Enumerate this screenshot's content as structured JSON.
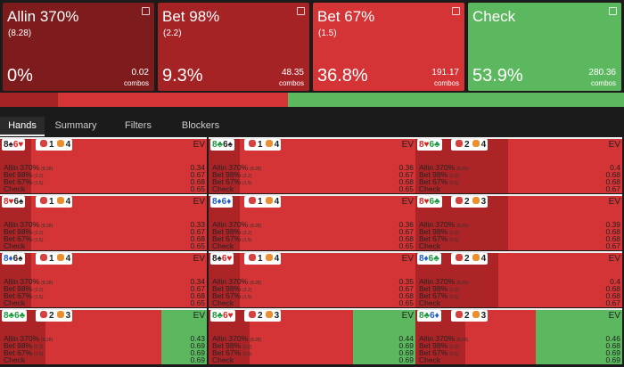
{
  "actions": [
    {
      "name": "Allin 370%",
      "size": "(8.28)",
      "freq": {
        "value": 0,
        "label": "0%"
      },
      "combos": 0.02,
      "color": "#7e1c1d"
    },
    {
      "name": "Bet 98%",
      "size": "(2.2)",
      "freq": {
        "value": 9.3,
        "label": "9.3%"
      },
      "combos": 48.35,
      "color": "#a52225"
    },
    {
      "name": "Bet 67%",
      "size": "(1.5)",
      "freq": {
        "value": 36.8,
        "label": "36.8%"
      },
      "combos": 191.17,
      "color": "#d43435"
    },
    {
      "name": "Check",
      "freq": {
        "value": 53.9,
        "label": "53.9%"
      },
      "combos": 280.36,
      "color": "#5cb85e"
    }
  ],
  "combos_unit": "combos",
  "tabs": [
    "Hands",
    "Summary",
    "Filters",
    "Blockers"
  ],
  "ev_label": "EV",
  "cells": [
    {
      "cards": [
        {
          "text": "8♠",
          "color": "#222"
        },
        {
          "text": "6♥",
          "color": "#d22"
        }
      ],
      "badges": [
        "1",
        "4"
      ],
      "strategy": [
        0,
        15,
        85,
        0
      ],
      "ev": [
        0.34,
        0.67,
        0.68,
        0.65
      ]
    },
    {
      "cards": [
        {
          "text": "8♣",
          "color": "#1a9a3a"
        },
        {
          "text": "6♠",
          "color": "#222"
        }
      ],
      "badges": [
        "1",
        "4"
      ],
      "strategy": [
        0,
        15,
        85,
        0
      ],
      "ev": [
        0.36,
        0.67,
        0.68,
        0.65
      ]
    },
    {
      "cards": [
        {
          "text": "8♥",
          "color": "#d22"
        },
        {
          "text": "6♣",
          "color": "#1a9a3a"
        }
      ],
      "badges": [
        "2",
        "4"
      ],
      "strategy": [
        0,
        45,
        55,
        0
      ],
      "ev": [
        0.4,
        0.68,
        0.68,
        0.67
      ]
    },
    {
      "cards": [
        {
          "text": "8♥",
          "color": "#d22"
        },
        {
          "text": "6♠",
          "color": "#222"
        }
      ],
      "badges": [
        "1",
        "4"
      ],
      "strategy": [
        0,
        15,
        85,
        0
      ],
      "ev": [
        0.33,
        0.67,
        0.68,
        0.65
      ]
    },
    {
      "cards": [
        {
          "text": "8♦",
          "color": "#1d5fd0"
        },
        {
          "text": "6♦",
          "color": "#1d5fd0"
        }
      ],
      "badges": [
        "1",
        "4"
      ],
      "strategy": [
        0,
        15,
        85,
        0
      ],
      "ev": [
        0.36,
        0.67,
        0.68,
        0.65
      ]
    },
    {
      "cards": [
        {
          "text": "8♥",
          "color": "#d22"
        },
        {
          "text": "6♣",
          "color": "#1a9a3a"
        }
      ],
      "badges": [
        "2",
        "3"
      ],
      "strategy": [
        0,
        45,
        55,
        0
      ],
      "ev": [
        0.39,
        0.68,
        0.68,
        0.67
      ]
    },
    {
      "cards": [
        {
          "text": "8♦",
          "color": "#1d5fd0"
        },
        {
          "text": "6♠",
          "color": "#222"
        }
      ],
      "badges": [
        "1",
        "4"
      ],
      "strategy": [
        0,
        15,
        85,
        0
      ],
      "ev": [
        0.34,
        0.67,
        0.68,
        0.65
      ]
    },
    {
      "cards": [
        {
          "text": "8♠",
          "color": "#222"
        },
        {
          "text": "6♥",
          "color": "#d22"
        }
      ],
      "badges": [
        "1",
        "4"
      ],
      "strategy": [
        0,
        15,
        85,
        0
      ],
      "ev": [
        0.35,
        0.67,
        0.68,
        0.65
      ]
    },
    {
      "cards": [
        {
          "text": "8♦",
          "color": "#1d5fd0"
        },
        {
          "text": "6♣",
          "color": "#1a9a3a"
        }
      ],
      "badges": [
        "2",
        "4"
      ],
      "strategy": [
        0,
        40,
        60,
        0
      ],
      "ev": [
        0.4,
        0.68,
        0.68,
        0.67
      ]
    },
    {
      "cards": [
        {
          "text": "8♣",
          "color": "#1a9a3a"
        },
        {
          "text": "6♣",
          "color": "#1a9a3a"
        }
      ],
      "badges": [
        "2",
        "3"
      ],
      "strategy": [
        0,
        22,
        56,
        22
      ],
      "ev": [
        0.43,
        0.69,
        0.69,
        0.69
      ]
    },
    {
      "cards": [
        {
          "text": "8♣",
          "color": "#1a9a3a"
        },
        {
          "text": "6♥",
          "color": "#d22"
        }
      ],
      "badges": [
        "2",
        "3"
      ],
      "strategy": [
        0,
        20,
        50,
        30
      ],
      "ev": [
        0.44,
        0.69,
        0.69,
        0.69
      ]
    },
    {
      "cards": [
        {
          "text": "8♣",
          "color": "#1a9a3a"
        },
        {
          "text": "6♦",
          "color": "#1d5fd0"
        }
      ],
      "badges": [
        "2",
        "3"
      ],
      "strategy": [
        0,
        24,
        34,
        42
      ],
      "ev": [
        0.46,
        0.68,
        0.69,
        0.69
      ]
    }
  ]
}
